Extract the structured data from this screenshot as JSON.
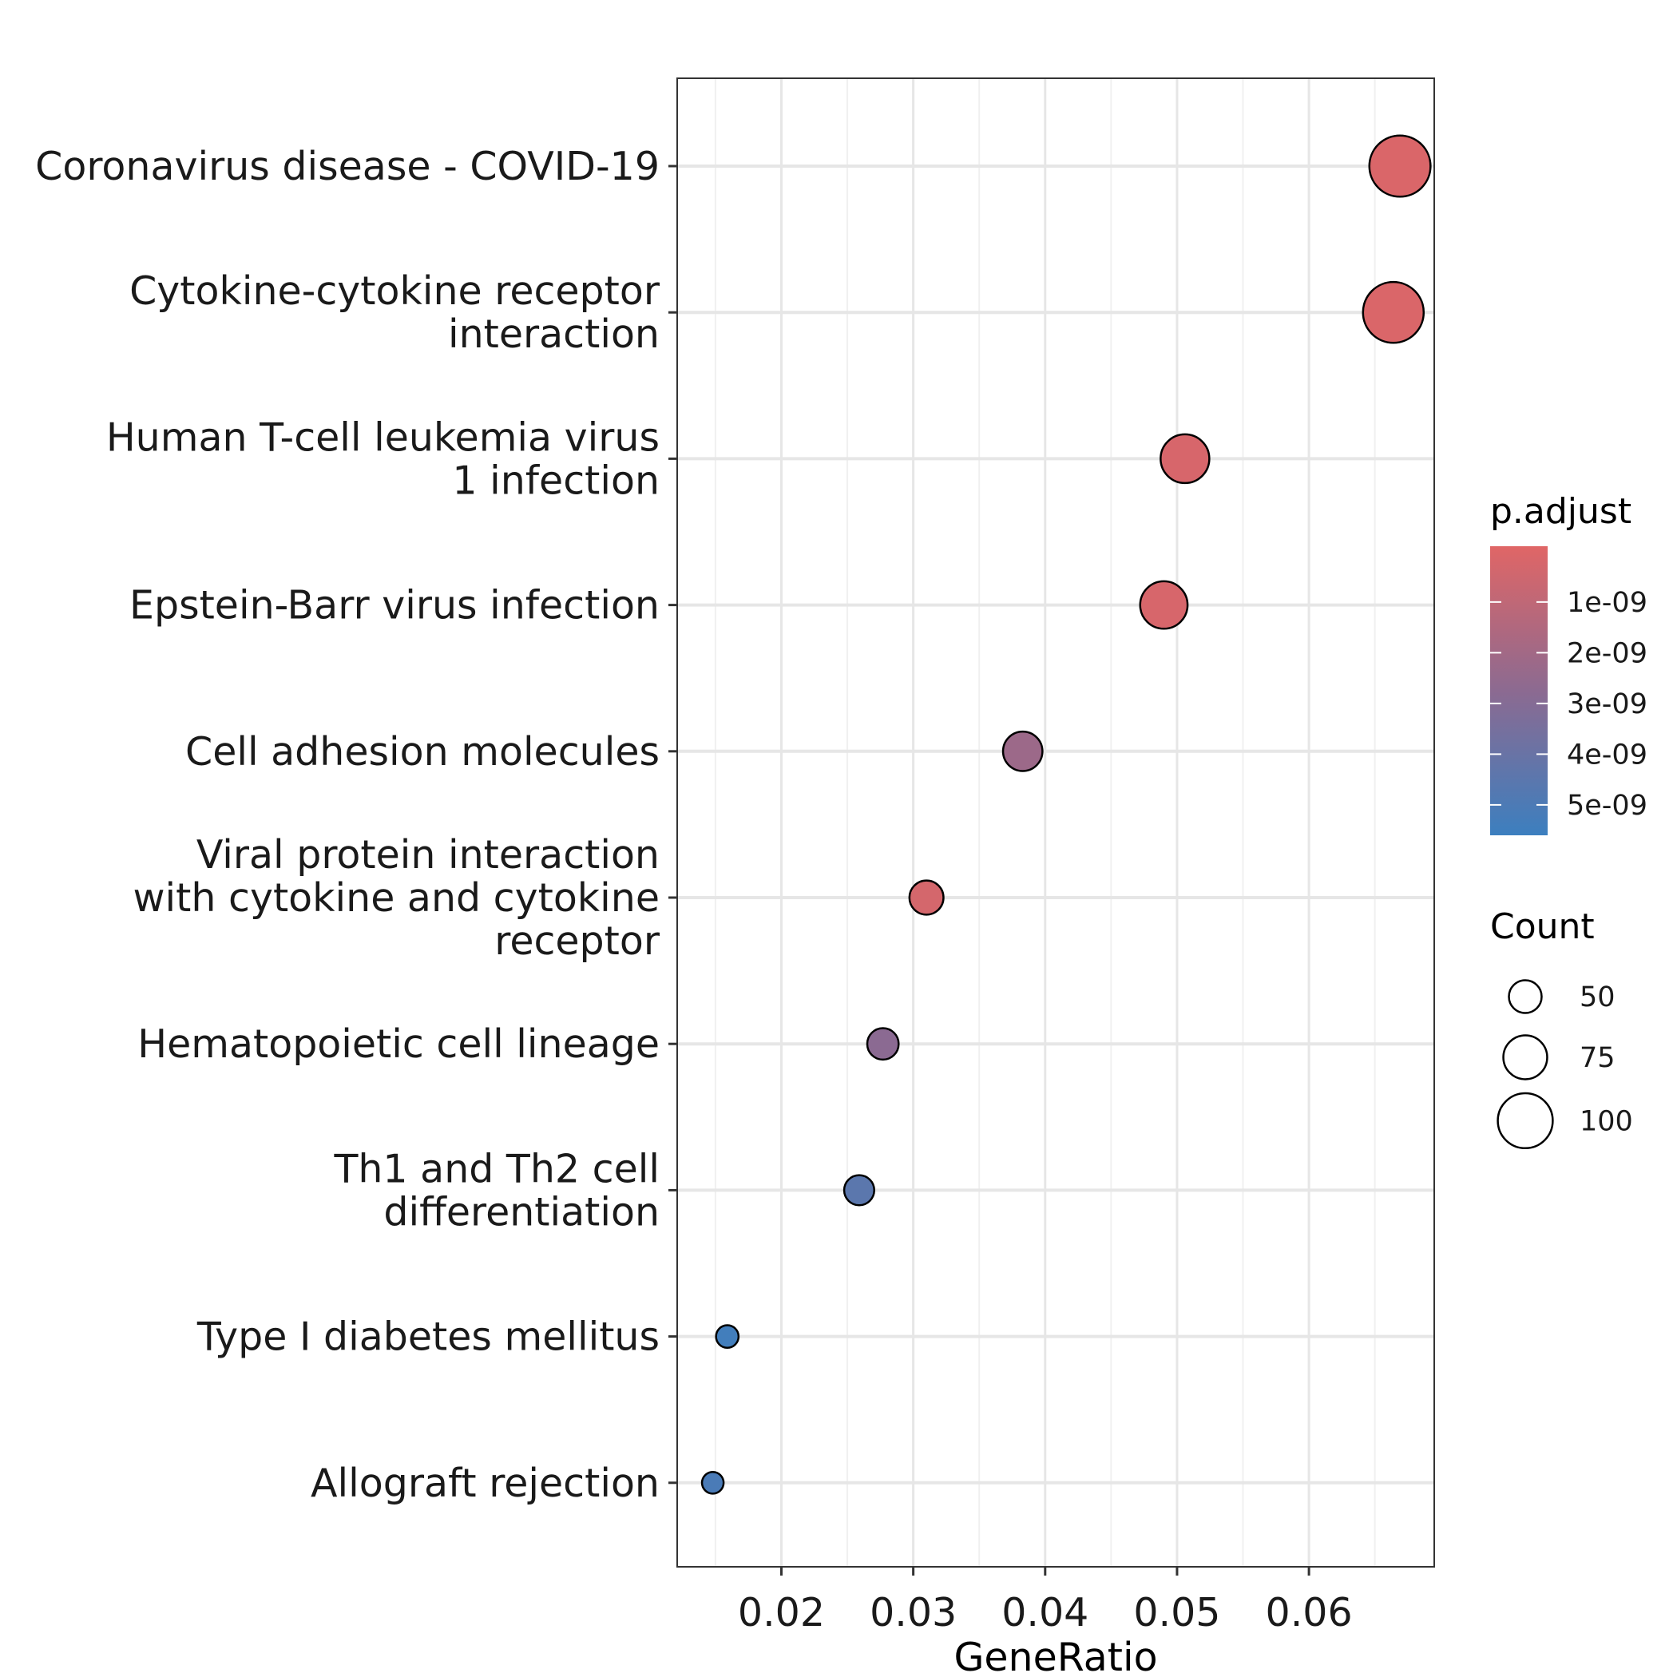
{
  "chart_data": {
    "type": "scatter",
    "xlabel": "GeneRatio",
    "ylabel": "",
    "xlim": [
      0.0121,
      0.0695
    ],
    "xticks": [
      0.02,
      0.03,
      0.04,
      0.05,
      0.06
    ],
    "xtick_labels": [
      "0.02",
      "0.03",
      "0.04",
      "0.05",
      "0.06"
    ],
    "grid": true,
    "categories": [
      [
        "Coronavirus disease - COVID-19"
      ],
      [
        "Cytokine-cytokine receptor",
        "interaction"
      ],
      [
        "Human T-cell leukemia virus",
        "1 infection"
      ],
      [
        "Epstein-Barr virus infection"
      ],
      [
        "Cell adhesion molecules"
      ],
      [
        "Viral protein interaction",
        "with cytokine and cytokine",
        "receptor"
      ],
      [
        "Hematopoietic cell lineage"
      ],
      [
        "Th1 and Th2 cell",
        "differentiation"
      ],
      [
        "Type I diabetes mellitus"
      ],
      [
        "Allograft rejection"
      ]
    ],
    "points": [
      {
        "x": 0.0669,
        "count": 114,
        "p_adjust": 1e-10
      },
      {
        "x": 0.0664,
        "count": 113,
        "p_adjust": 1e-10
      },
      {
        "x": 0.0506,
        "count": 86,
        "p_adjust": 2e-10
      },
      {
        "x": 0.049,
        "count": 83,
        "p_adjust": 2e-10
      },
      {
        "x": 0.0383,
        "count": 65,
        "p_adjust": 2.2e-09
      },
      {
        "x": 0.031,
        "count": 53,
        "p_adjust": 3e-10
      },
      {
        "x": 0.0277,
        "count": 47,
        "p_adjust": 2.8e-09
      },
      {
        "x": 0.0259,
        "count": 44,
        "p_adjust": 4.5e-09
      },
      {
        "x": 0.0159,
        "count": 27,
        "p_adjust": 5.4e-09
      },
      {
        "x": 0.0148,
        "count": 25,
        "p_adjust": 5.1e-09
      }
    ],
    "color_legend": {
      "title": "p.adjust",
      "domain": [
        -1e-10,
        5.6e-09
      ],
      "breaks": [
        1e-09,
        2e-09,
        3e-09,
        4e-09,
        5e-09
      ],
      "labels": [
        "1e-09",
        "2e-09",
        "3e-09",
        "4e-09",
        "5e-09"
      ],
      "low_color": "#E06666",
      "mid_color": "#8C6A91",
      "high_color": "#3C7FBF"
    },
    "size_legend": {
      "title": "Count",
      "breaks": [
        50,
        75,
        100
      ],
      "labels": [
        "50",
        "75",
        "100"
      ]
    },
    "legend_position": "right"
  }
}
